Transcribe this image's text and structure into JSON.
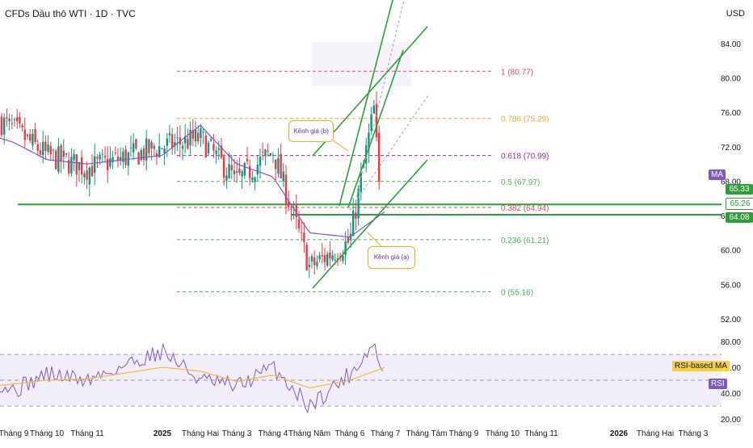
{
  "header": {
    "title": "CFDs Dầu thô WTI · 1D · TVC",
    "currency": "USD"
  },
  "colors": {
    "up": "#089981",
    "down": "#f23645",
    "ma": "#7e57c2",
    "rsi": "#7e57c2",
    "rsi_ma": "#f7b731",
    "channel": "#2e9e3a",
    "support": "#2e9e3a"
  },
  "price_badges": [
    "65.33",
    "65.26",
    "64.08"
  ],
  "indicator_labels": {
    "ma": "MA",
    "rsi": "RSI",
    "rsi_ma": "RSI-based MA"
  },
  "annotations": {
    "channel_a": "Kênh giá (a)",
    "channel_b": "Kênh giá (b)"
  },
  "chart_data": {
    "type": "line",
    "title": "CFDs Dầu thô WTI · 1D · TVC",
    "x_ticks": [
      "Tháng 9",
      "Tháng 10",
      "Tháng 11",
      "2025",
      "Tháng Hai",
      "Tháng 3",
      "Tháng 4",
      "Tháng Năm",
      "Tháng 6",
      "Tháng 7",
      "Tháng Tám",
      "Tháng 9",
      "Tháng 10",
      "Tháng 11",
      "2026",
      "Tháng Hai",
      "Tháng 3"
    ],
    "x_tick_bold": [
      "2025",
      "2026"
    ],
    "y_ticks": [
      52,
      56,
      60,
      64,
      68,
      72,
      76,
      80,
      84
    ],
    "ylim": [
      51,
      89
    ],
    "rsi_ticks": [
      20,
      40,
      60,
      80
    ],
    "rsi_ylim": [
      15,
      85
    ],
    "fib_levels": [
      {
        "label": "1 (80.77)",
        "value": 80.77,
        "color": "#e0475a"
      },
      {
        "label": "0.786 (75.29)",
        "value": 75.29,
        "color": "#f5a623"
      },
      {
        "label": "0.618 (70.99)",
        "value": 70.99,
        "color": "#9c27b0"
      },
      {
        "label": "0.5 (67.97)",
        "value": 67.97,
        "color": "#4caf50"
      },
      {
        "label": "0.382 (64.94)",
        "value": 64.94,
        "color": "#e0475a"
      },
      {
        "label": "0.236 (61.21)",
        "value": 61.21,
        "color": "#4caf50"
      },
      {
        "label": "0 (55.16)",
        "value": 55.16,
        "color": "#4caf50"
      }
    ],
    "support_levels": [
      65.3,
      64.1
    ],
    "series": [
      {
        "kind": "price",
        "x": [
          "Tháng 9",
          "Tháng 10",
          "Tháng 11",
          "2025",
          "Tháng Hai",
          "Tháng 3",
          "Tháng 4",
          "Tháng Năm",
          "Tháng 6",
          "Tháng 7"
        ],
        "values": [
          74.0,
          71.0,
          69.5,
          72.0,
          73.0,
          68.0,
          71.5,
          58.0,
          61.0,
          65.3
        ]
      },
      {
        "name": "MA",
        "x": [
          "Tháng 9",
          "Tháng 10",
          "Tháng 11",
          "2025",
          "Tháng Hai",
          "Tháng 3",
          "Tháng 4",
          "Tháng Năm",
          "Tháng 6",
          "Tháng 7"
        ],
        "values": [
          72.5,
          70.5,
          70.0,
          71.0,
          74.5,
          70.0,
          68.5,
          62.0,
          61.5,
          64.5
        ]
      },
      {
        "name": "RSI",
        "x": [
          "Tháng 9",
          "Tháng 10",
          "Tháng 11",
          "2025",
          "Tháng Hai",
          "Tháng 3",
          "Tháng 4",
          "Tháng Năm",
          "Tháng 6",
          "Tháng 7"
        ],
        "values": [
          42,
          55,
          50,
          73,
          50,
          45,
          60,
          30,
          55,
          48
        ]
      },
      {
        "name": "RSI-based MA",
        "x": [
          "Tháng 9",
          "Tháng 10",
          "Tháng 11",
          "2025",
          "Tháng Hai",
          "Tháng 3",
          "Tháng 4",
          "Tháng Năm",
          "Tháng 6",
          "Tháng 7"
        ],
        "values": [
          47,
          50,
          51,
          60,
          57,
          49,
          54,
          44,
          50,
          60
        ]
      }
    ],
    "grid": false,
    "legend": "right"
  }
}
